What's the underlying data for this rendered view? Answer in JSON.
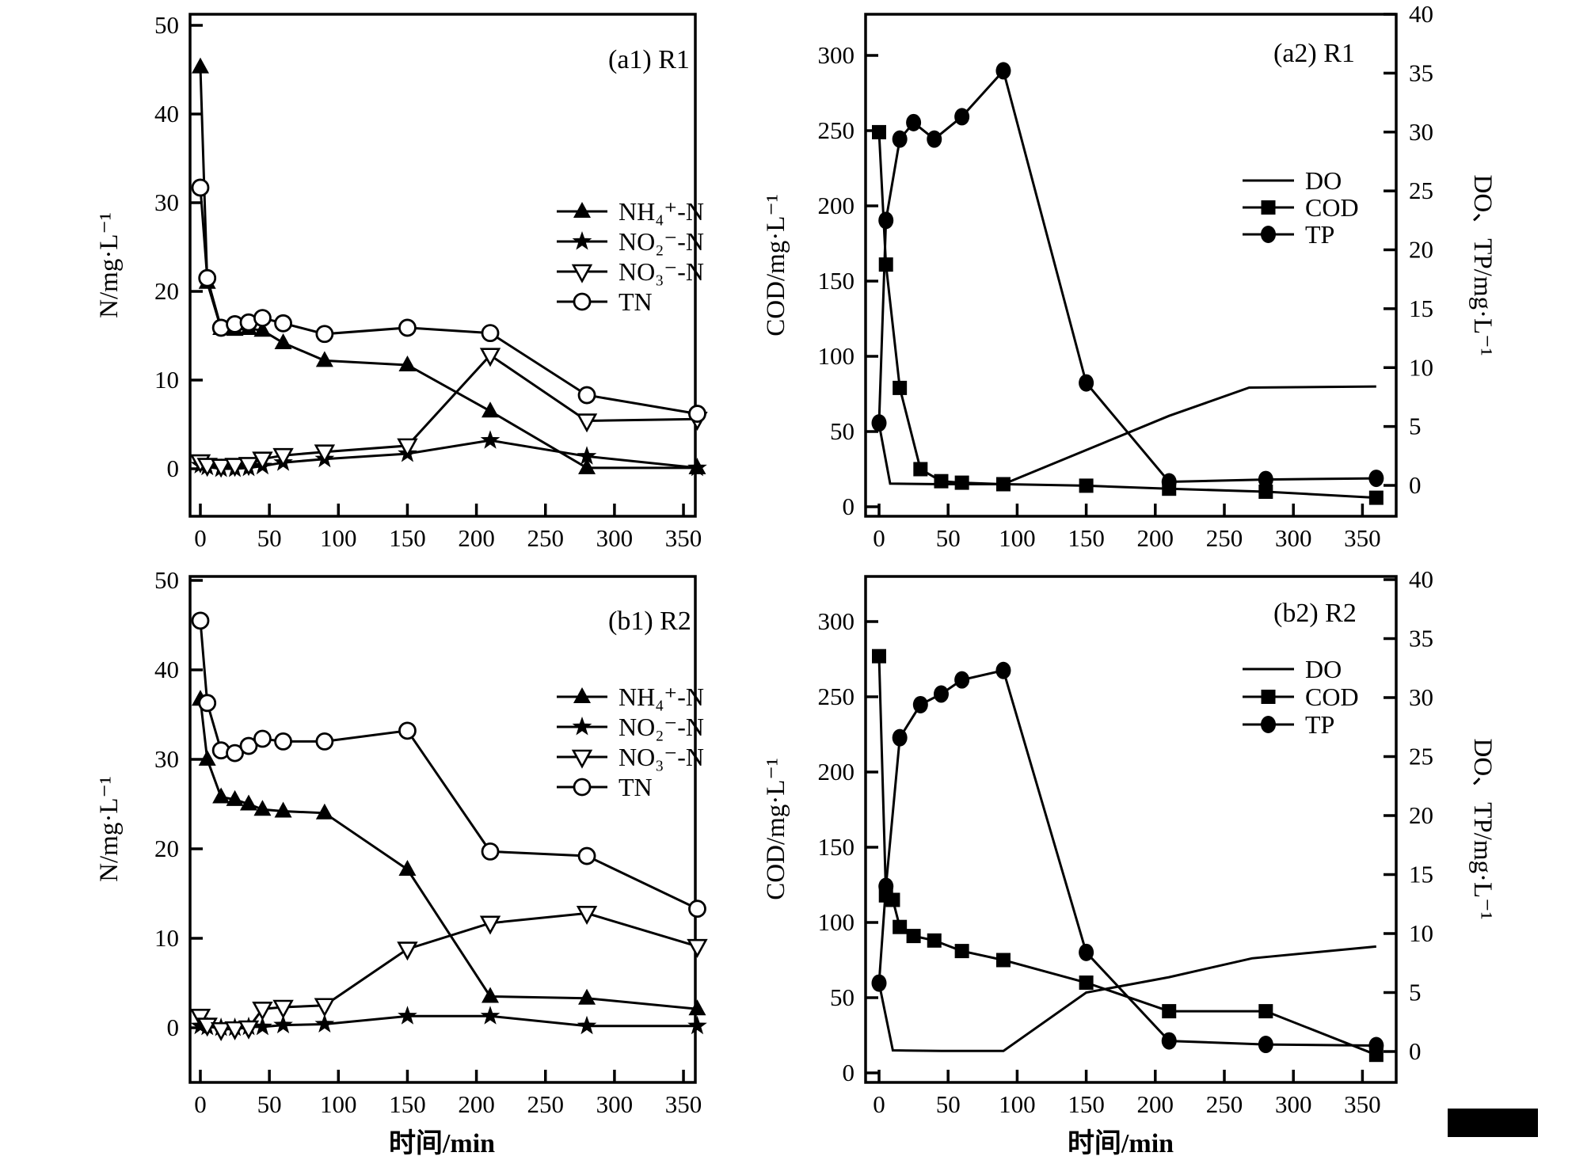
{
  "page": {
    "background": "#ffffff",
    "ink_color": "#000000",
    "x_axis_title": "时间/min"
  },
  "redaction_box": {
    "present": true,
    "color": "#000000"
  },
  "chart_data": [
    {
      "id": "a1",
      "type": "line",
      "panel_label": "(a1) R1",
      "ylabel": "N/mg·L⁻¹",
      "xlabel": "",
      "x_ticks": [
        0,
        50,
        100,
        150,
        200,
        250,
        300,
        350
      ],
      "y_ticks": [
        0,
        10,
        20,
        30,
        40,
        50
      ],
      "xlim": [
        -12,
        363
      ],
      "ylim": [
        -5,
        51
      ],
      "legend_position": "right-inside",
      "grid": false,
      "series": [
        {
          "key": "nh4",
          "name": "NH₄⁺-N",
          "marker": "triangle-filled",
          "axis": "left",
          "x": [
            0,
            5,
            15,
            25,
            35,
            45,
            60,
            90,
            150,
            210,
            280,
            360
          ],
          "values": [
            45.3,
            21.0,
            15.8,
            15.7,
            15.8,
            15.6,
            14.2,
            12.2,
            11.7,
            6.5,
            0.1,
            0.1
          ]
        },
        {
          "key": "no2",
          "name": "NO₂⁻-N",
          "marker": "star-filled",
          "axis": "left",
          "x": [
            0,
            5,
            15,
            25,
            35,
            45,
            60,
            90,
            150,
            210,
            280,
            360
          ],
          "values": [
            0.4,
            0.2,
            0.0,
            0.0,
            0.1,
            0.3,
            0.7,
            1.1,
            1.7,
            3.2,
            1.4,
            0.1
          ]
        },
        {
          "key": "no3",
          "name": "NO₃⁻-N",
          "marker": "triangle-down-open",
          "axis": "left",
          "x": [
            0,
            5,
            15,
            25,
            35,
            45,
            60,
            90,
            150,
            210,
            280,
            360
          ],
          "values": [
            0.8,
            0.4,
            0.3,
            0.4,
            0.5,
            1.1,
            1.5,
            1.9,
            2.6,
            12.8,
            5.4,
            5.6
          ]
        },
        {
          "key": "tn",
          "name": "TN",
          "marker": "circle-open",
          "axis": "left",
          "x": [
            0,
            5,
            15,
            25,
            35,
            45,
            60,
            90,
            150,
            210,
            280,
            360
          ],
          "values": [
            31.7,
            21.5,
            15.9,
            16.3,
            16.5,
            17.0,
            16.4,
            15.2,
            15.9,
            15.3,
            8.3,
            6.2
          ]
        }
      ]
    },
    {
      "id": "a2",
      "type": "line",
      "panel_label": "(a2) R1",
      "ylabel": "COD/mg·L⁻¹",
      "ylabel_right": "DO、TP/mg·L⁻¹",
      "xlabel": "",
      "x_ticks": [
        0,
        50,
        100,
        150,
        200,
        250,
        300,
        350
      ],
      "y_ticks": [
        0,
        50,
        100,
        150,
        200,
        250,
        300
      ],
      "y_ticks_right": [
        0,
        5,
        10,
        15,
        20,
        25,
        30,
        35,
        40
      ],
      "xlim": [
        -12,
        375
      ],
      "ylim_left": [
        0,
        330
      ],
      "ylim_right": [
        -2.3,
        40
      ],
      "legend_position": "right-inside",
      "grid": false,
      "series": [
        {
          "key": "do",
          "name": "DO",
          "marker": "none",
          "axis": "right",
          "x": [
            0,
            8,
            45,
            90,
            150,
            210,
            268,
            360
          ],
          "values": [
            5.2,
            0.15,
            0.1,
            0.1,
            3.0,
            5.9,
            8.3,
            8.4
          ]
        },
        {
          "key": "cod",
          "name": "COD",
          "marker": "square-filled",
          "axis": "left",
          "x": [
            0,
            5,
            15,
            30,
            45,
            60,
            90,
            150,
            210,
            280,
            360
          ],
          "values": [
            249,
            161,
            79,
            25,
            17,
            16,
            15,
            14,
            12,
            10,
            6
          ]
        },
        {
          "key": "tp",
          "name": "TP",
          "marker": "circle-filled",
          "axis": "right",
          "x": [
            0,
            5,
            15,
            25,
            40,
            60,
            90,
            150,
            210,
            280,
            360
          ],
          "values": [
            5.3,
            22.5,
            29.4,
            30.8,
            29.4,
            31.3,
            35.2,
            8.7,
            0.3,
            0.5,
            0.6
          ]
        }
      ]
    },
    {
      "id": "b1",
      "type": "line",
      "panel_label": "(b1) R2",
      "ylabel": "N/mg·L⁻¹",
      "xlabel": "时间/min",
      "x_ticks": [
        0,
        50,
        100,
        150,
        200,
        250,
        300,
        350
      ],
      "y_ticks": [
        0,
        10,
        20,
        30,
        40,
        50
      ],
      "xlim": [
        -12,
        363
      ],
      "ylim": [
        -6,
        51
      ],
      "legend_position": "right-inside",
      "grid": false,
      "series": [
        {
          "key": "nh4",
          "name": "NH₄⁺-N",
          "marker": "triangle-filled",
          "axis": "left",
          "x": [
            0,
            5,
            15,
            25,
            35,
            45,
            60,
            90,
            150,
            210,
            280,
            360
          ],
          "values": [
            36.7,
            30.0,
            25.8,
            25.5,
            25.0,
            24.4,
            24.2,
            24.0,
            17.7,
            3.5,
            3.3,
            2.1
          ]
        },
        {
          "key": "no2",
          "name": "NO₂⁻-N",
          "marker": "star-filled",
          "axis": "left",
          "x": [
            0,
            5,
            15,
            25,
            35,
            45,
            60,
            90,
            150,
            210,
            280,
            360
          ],
          "values": [
            0.2,
            0.1,
            0.0,
            0.0,
            0.1,
            0.1,
            0.3,
            0.4,
            1.3,
            1.3,
            0.2,
            0.2
          ]
        },
        {
          "key": "no3",
          "name": "NO₃⁻-N",
          "marker": "triangle-down-open",
          "axis": "left",
          "x": [
            0,
            5,
            15,
            25,
            35,
            45,
            60,
            90,
            150,
            210,
            280,
            360
          ],
          "values": [
            1.3,
            0.3,
            -0.2,
            -0.1,
            0.0,
            2.1,
            2.3,
            2.5,
            8.8,
            11.7,
            12.8,
            9.1
          ]
        },
        {
          "key": "tn",
          "name": "TN",
          "marker": "circle-open",
          "axis": "left",
          "x": [
            0,
            5,
            15,
            25,
            35,
            45,
            60,
            90,
            150,
            210,
            280,
            360
          ],
          "values": [
            45.5,
            36.3,
            31.0,
            30.7,
            31.5,
            32.3,
            32.0,
            32.0,
            33.2,
            19.7,
            19.2,
            13.3
          ]
        }
      ]
    },
    {
      "id": "b2",
      "type": "line",
      "panel_label": "(b2) R2",
      "ylabel": "COD/mg·L⁻¹",
      "ylabel_right": "DO、TP/mg·L⁻¹",
      "xlabel": "时间/min",
      "x_ticks": [
        0,
        50,
        100,
        150,
        200,
        250,
        300,
        350
      ],
      "y_ticks": [
        0,
        50,
        100,
        150,
        200,
        250,
        300
      ],
      "y_ticks_right": [
        0,
        5,
        10,
        15,
        20,
        25,
        30,
        35,
        40
      ],
      "xlim": [
        -12,
        375
      ],
      "ylim_left": [
        0,
        330
      ],
      "ylim_right": [
        -2.3,
        40
      ],
      "legend_position": "right-inside",
      "grid": false,
      "series": [
        {
          "key": "do",
          "name": "DO",
          "marker": "none",
          "axis": "right",
          "x": [
            0,
            10,
            45,
            90,
            150,
            210,
            270,
            360
          ],
          "values": [
            5.8,
            0.1,
            0.05,
            0.05,
            5.0,
            6.3,
            7.9,
            8.9
          ]
        },
        {
          "key": "cod",
          "name": "COD",
          "marker": "square-filled",
          "axis": "left",
          "x": [
            0,
            5,
            10,
            15,
            25,
            40,
            60,
            90,
            150,
            210,
            280,
            360
          ],
          "values": [
            277,
            118,
            115,
            97,
            91,
            88,
            81,
            75,
            60,
            41,
            41,
            12
          ]
        },
        {
          "key": "tp",
          "name": "TP",
          "marker": "circle-filled",
          "axis": "right",
          "x": [
            0,
            5,
            15,
            30,
            45,
            60,
            90,
            150,
            210,
            280,
            360
          ],
          "values": [
            5.8,
            14.0,
            26.6,
            29.4,
            30.3,
            31.5,
            32.3,
            8.4,
            0.9,
            0.6,
            0.5
          ]
        }
      ]
    }
  ]
}
